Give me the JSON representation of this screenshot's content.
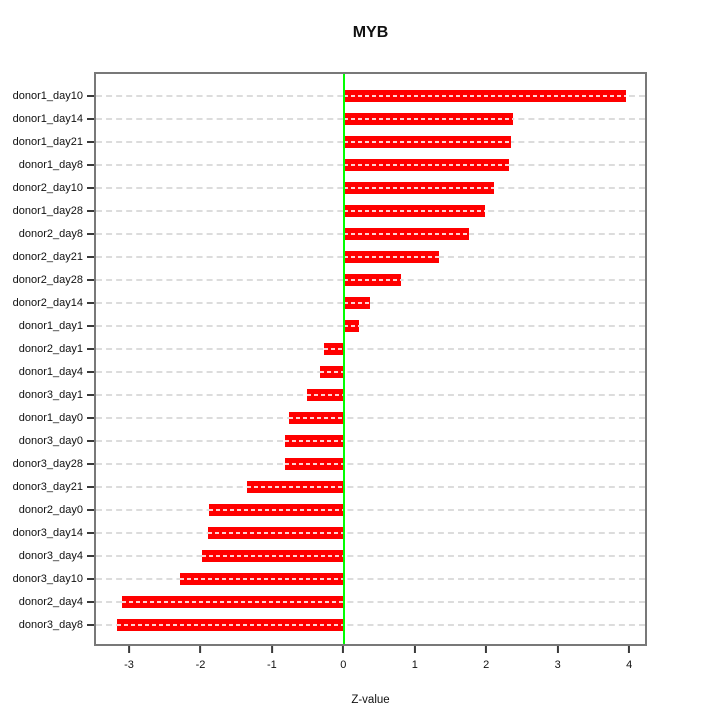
{
  "chart_data": {
    "type": "bar",
    "orientation": "horizontal",
    "title": "MYB",
    "xlabel": "Z-value",
    "ylabel": "",
    "categories": [
      "donor1_day10",
      "donor1_day14",
      "donor1_day21",
      "donor1_day8",
      "donor2_day10",
      "donor1_day28",
      "donor2_day8",
      "donor2_day21",
      "donor2_day28",
      "donor2_day14",
      "donor1_day1",
      "donor2_day1",
      "donor1_day4",
      "donor3_day1",
      "donor1_day0",
      "donor3_day0",
      "donor3_day28",
      "donor3_day21",
      "donor2_day0",
      "donor3_day14",
      "donor3_day4",
      "donor3_day10",
      "donor2_day4",
      "donor3_day8"
    ],
    "values": [
      3.98,
      2.39,
      2.36,
      2.33,
      2.12,
      2.0,
      1.77,
      1.34,
      0.81,
      0.37,
      0.22,
      -0.27,
      -0.33,
      -0.52,
      -0.77,
      -0.82,
      -0.83,
      -1.36,
      -1.89,
      -1.91,
      -1.99,
      -2.3,
      -3.12,
      -3.2
    ],
    "xlim": [
      -3.49,
      4.25
    ],
    "xticks": [
      -3,
      -2,
      -1,
      0,
      1,
      2,
      3,
      4
    ],
    "zero_line_at": 0,
    "grid": "dashed horizontal line per category",
    "legend": "none",
    "colors": {
      "bar": "#ff0000",
      "zero_line": "#00ff00",
      "gridline": "#dcdcdc",
      "box_border": "#787878",
      "tick": "#3a3a3a",
      "text": "#111111",
      "background": "#ffffff"
    }
  }
}
